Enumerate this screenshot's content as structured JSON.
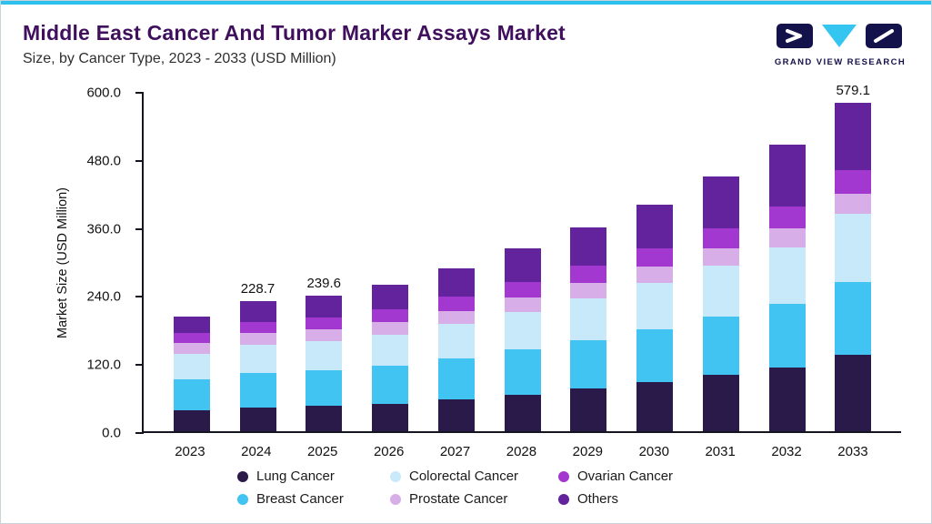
{
  "header": {
    "title": "Middle East Cancer And Tumor Marker Assays Market",
    "subtitle": "Size, by Cancer Type, 2023 - 2033 (USD Million)"
  },
  "logo": {
    "text": "GRAND VIEW RESEARCH"
  },
  "colors": {
    "accent": "#2bc0ed",
    "title": "#40105e",
    "axis": "#15151f"
  },
  "chart_data": {
    "type": "bar",
    "stacked": true,
    "title": "Middle East Cancer And Tumor Marker Assays Market Size, by Cancer Type, 2023 - 2033 (USD Million)",
    "xlabel": "",
    "ylabel": "Market Size (USD Million)",
    "ylim": [
      0,
      600
    ],
    "yticks": [
      600,
      480,
      360,
      240,
      120,
      0
    ],
    "grid": false,
    "legend_position": "bottom",
    "categories": [
      "2023",
      "2024",
      "2025",
      "2026",
      "2027",
      "2028",
      "2029",
      "2030",
      "2031",
      "2032",
      "2033"
    ],
    "series": [
      {
        "name": "Lung Cancer",
        "color": "#2a1a4a",
        "values": [
          37.0,
          42.0,
          45.0,
          49.0,
          56.0,
          65.0,
          75.0,
          86.0,
          99.0,
          112.0,
          135.0
        ]
      },
      {
        "name": "Breast Cancer",
        "color": "#41c4f2",
        "values": [
          55.0,
          60.0,
          62.0,
          66.0,
          72.0,
          79.0,
          86.0,
          94.0,
          103.0,
          113.0,
          128.0
        ]
      },
      {
        "name": "Colorectal Cancer",
        "color": "#c8e9f9",
        "values": [
          45.0,
          50.0,
          52.0,
          56.0,
          61.0,
          67.0,
          74.0,
          81.0,
          90.0,
          100.0,
          120.0
        ]
      },
      {
        "name": "Prostate Cancer",
        "color": "#d8aee9",
        "values": [
          19.0,
          20.5,
          21.0,
          22.0,
          23.5,
          25.0,
          27.0,
          29.0,
          31.0,
          33.5,
          36.0
        ]
      },
      {
        "name": "Ovarian Cancer",
        "color": "#a238cf",
        "values": [
          18.0,
          20.2,
          21.0,
          22.5,
          24.5,
          27.0,
          29.5,
          32.0,
          35.0,
          38.5,
          41.0
        ]
      },
      {
        "name": "Others",
        "color": "#63239c",
        "values": [
          28.0,
          36.0,
          38.6,
          42.5,
          49.5,
          59.0,
          67.5,
          78.0,
          92.0,
          108.0,
          119.1
        ]
      }
    ],
    "totals": [
      202.0,
      228.7,
      239.6,
      258.0,
      286.5,
      322.0,
      359.0,
      400.0,
      450.0,
      505.0,
      579.1
    ],
    "data_labels": [
      {
        "category": "2024",
        "value": "228.7"
      },
      {
        "category": "2025",
        "value": "239.6"
      },
      {
        "category": "2033",
        "value": "579.1"
      }
    ],
    "legend_order": [
      "Lung Cancer",
      "Colorectal Cancer",
      "Ovarian Cancer",
      "Breast Cancer",
      "Prostate Cancer",
      "Others"
    ]
  }
}
